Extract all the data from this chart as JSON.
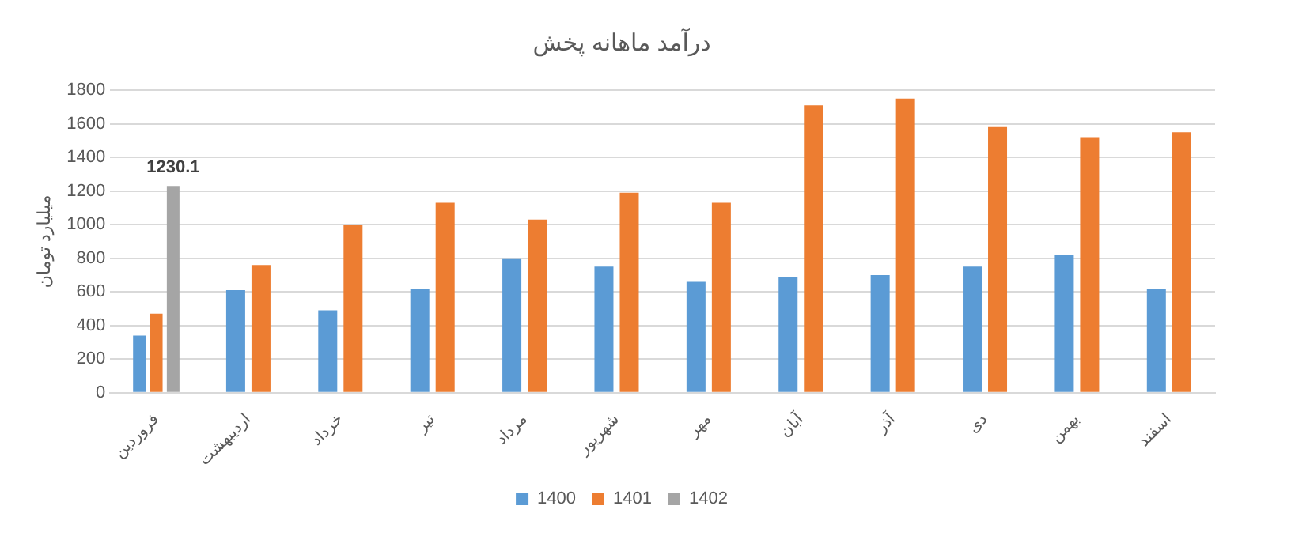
{
  "chart_data": {
    "type": "bar",
    "title": "درآمد ماهانه پخش",
    "ylabel": "میلیارد تومان",
    "categories": [
      "فروردین",
      "اردیبهشت",
      "خرداد",
      "تیر",
      "مرداد",
      "شهریور",
      "مهر",
      "آبان",
      "آذر",
      "دی",
      "بهمن",
      "اسفند"
    ],
    "series": [
      {
        "name": "1400",
        "color": "#5b9bd5",
        "values": [
          340,
          610,
          490,
          620,
          800,
          750,
          660,
          690,
          700,
          750,
          820,
          620
        ]
      },
      {
        "name": "1401",
        "color": "#ed7d31",
        "values": [
          470,
          760,
          1000,
          1130,
          1030,
          1190,
          1130,
          1710,
          1750,
          1580,
          1520,
          1550
        ]
      },
      {
        "name": "1402",
        "color": "#a5a5a5",
        "values": [
          1230.1,
          null,
          null,
          null,
          null,
          null,
          null,
          null,
          null,
          null,
          null,
          null
        ],
        "value_labels": [
          "1230.1",
          null,
          null,
          null,
          null,
          null,
          null,
          null,
          null,
          null,
          null,
          null
        ]
      }
    ],
    "ylim": [
      0,
      1800
    ],
    "yticks": [
      0,
      200,
      400,
      600,
      800,
      1000,
      1200,
      1400,
      1600,
      1800
    ],
    "grid": "y",
    "legend": "bottom"
  }
}
